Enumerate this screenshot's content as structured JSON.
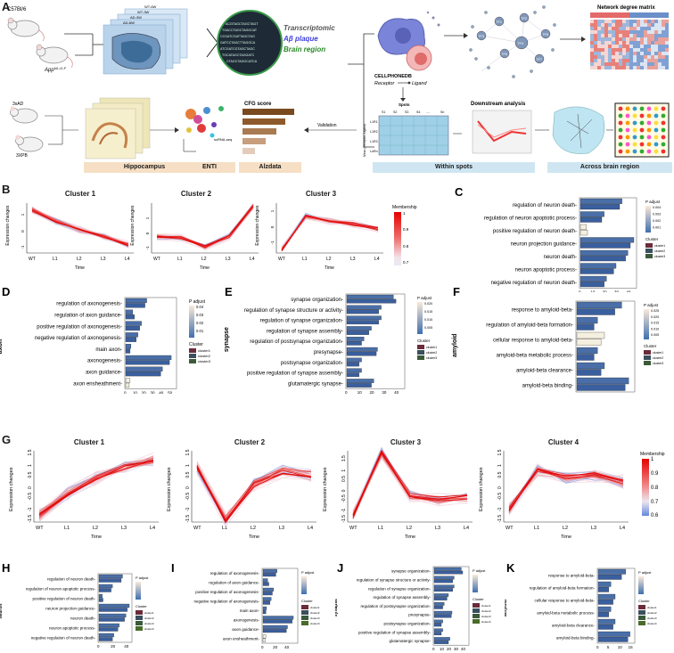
{
  "panelA": {
    "letter": "A",
    "mouse1": "C57Bl/6",
    "mouse2": "App",
    "mouse2_sup": "NL-G-F",
    "sections": [
      "WT-6W",
      "WT-3W",
      "AD-3W",
      "AD-6W"
    ],
    "circle_labels": [
      "Transcriptomic",
      "Aβ plaque",
      "Brain region"
    ],
    "circle_colors": [
      "#555555",
      "#3d3de0",
      "#2a8a2a"
    ],
    "cellphonedb": "CELLPHONEDB",
    "receptor": "Receptor",
    "ligand": "Ligand",
    "spots_label": "Spots",
    "spot_headers": [
      "S1",
      "S2",
      "S3",
      "S4",
      "....",
      "Sn"
    ],
    "lr_rows": [
      "L1R1",
      "L1R2",
      "L1R3",
      "LnRn"
    ],
    "mean_axis": "Mean (Receptor, Ligand)",
    "tf_nodes": [
      "TF1",
      "TF2",
      "TF3",
      "TF4",
      "TF5",
      "TF6",
      "TF7"
    ],
    "network_title": "Network degree matrix",
    "downstream": "Downstream analysis",
    "mice_bottom": [
      "3xAD",
      "3XPB"
    ],
    "scrna": "scRNA-seq",
    "cfg": "CFG score",
    "validation": "Validation",
    "bottom_chips": [
      "Hippocampus",
      "ENTI",
      "Alzdata",
      "Within spots",
      "Across brain region"
    ]
  },
  "panelB": {
    "letter": "B",
    "titles": [
      "Cluster 1",
      "Cluster 2",
      "Cluster 3"
    ],
    "ylabel": "Expression changes",
    "xlabel": "Time",
    "xticks": [
      "WT",
      "L1",
      "L2",
      "L3",
      "L4"
    ],
    "yticks": [
      "2",
      "1",
      "0",
      "-1"
    ],
    "legend_title": "Membership",
    "legend_ticks": [
      "1",
      "0.9",
      "0.8",
      "0.7"
    ]
  },
  "panelG": {
    "letter": "G",
    "titles": [
      "Cluster 1",
      "Cluster 2",
      "Cluster 3",
      "Cluster 4"
    ],
    "ylabel": "Expression changes",
    "xlabel": "Time",
    "xticks": [
      "WT",
      "L1",
      "L2",
      "L3",
      "L4"
    ],
    "yticks": [
      "1.5",
      "1",
      "0.5",
      "0",
      "-0.5",
      "-1",
      "-1.5"
    ],
    "legend_title": "Membership",
    "legend_ticks": [
      "1",
      "0.9",
      "0.8",
      "0.7",
      "0.6"
    ]
  },
  "enrich": {
    "C": {
      "letter": "C",
      "group": "neuron",
      "padj_ticks": [
        "0.004",
        "0.003",
        "0.002",
        "0.001"
      ],
      "xticks": [
        "0",
        "10",
        "20",
        "30",
        "40"
      ],
      "terms": [
        "regulation of neuron death",
        "regulation of neuron apoptotic process",
        "positive regulation of neuron death",
        "neuron projection guidance",
        "neuron death",
        "neuron apoptotic process",
        "negative regulation of neuron death"
      ]
    },
    "D": {
      "letter": "D",
      "group": "axon",
      "padj_ticks": [
        "0.04",
        "0.03",
        "0.02",
        "0.01"
      ],
      "xticks": [
        "0",
        "10",
        "20",
        "30",
        "40",
        "50"
      ],
      "terms": [
        "regulation of axonogenesis",
        "regulation of axon guidance",
        "positive regulation of axonogenesis",
        "negative regulation of axonogenesis",
        "main axon",
        "axonogenesis",
        "axon guidance",
        "axon ensheathment"
      ]
    },
    "E": {
      "letter": "E",
      "group": "synapse",
      "padj_ticks": [
        "0.020",
        "0.015",
        "0.010",
        "0.005"
      ],
      "xticks": [
        "0",
        "10",
        "20",
        "30",
        "40"
      ],
      "terms": [
        "synapse organization",
        "regulation of synapse structure or activity",
        "regulation of synapse organization",
        "regulation of synapse assembly",
        "regulation of postsynapse organization",
        "presynapse",
        "postsynapse organization",
        "positive regulation of synapse assembly",
        "glutamatergic synapse"
      ]
    },
    "F": {
      "letter": "F",
      "group": "amyloid",
      "padj_ticks": [
        "0.025",
        "0.020",
        "0.015",
        "0.010",
        "0.005"
      ],
      "xticks": [
        "0",
        "5",
        "10",
        "15"
      ],
      "terms": [
        "response to amyloid-beta",
        "regulation of amyloid-beta formation",
        "cellular response to amyloid-beta",
        "amyloid-beta metabolic process",
        "amyloid-beta clearance",
        "amyloid-beta binding"
      ]
    },
    "H": {
      "letter": "H",
      "group": "neuron",
      "terms": [
        "regulation of neuron death",
        "regulation of neuron apoptotic process",
        "positive regulation of neuron death",
        "neuron projection guidance",
        "neuron death",
        "neuron apoptotic process",
        "negative regulation of neuron death"
      ]
    },
    "I": {
      "letter": "I",
      "group": "axon",
      "terms": [
        "regulation of axonogenesis",
        "regulation of axon guidance",
        "positive regulation of axonogenesis",
        "negative regulation of axonogenesis",
        "main axon",
        "axonogenesis",
        "axon guidance",
        "axon ensheathment"
      ]
    },
    "J": {
      "letter": "J",
      "group": "synapse",
      "terms": [
        "synapse organization",
        "regulation of synapse structure or activity",
        "regulation of synapse organization",
        "regulation of synapse assembly",
        "regulation of postsynapse organization",
        "presynapse",
        "postsynapse organization",
        "positive regulation of synapse assembly",
        "glutamatergic synapse"
      ]
    },
    "K": {
      "letter": "K",
      "group": "amyloid",
      "terms": [
        "response to amyloid-beta",
        "regulation of amyloid-beta formation",
        "cellular response to amyloid-beta",
        "amyloid-beta metabolic process",
        "amyloid-beta clearance",
        "amyloid-beta binding"
      ]
    },
    "padj_label": "P adjust",
    "cluster_label": "Cluster",
    "cluster_names3": [
      "cluster1",
      "cluster2",
      "cluster3"
    ],
    "cluster_names4": [
      "cluster1",
      "cluster2",
      "cluster3",
      "cluster4"
    ],
    "cluster_colors": [
      "#6b2b3a",
      "#3b4f5c",
      "#3a5a3a",
      "#4a6b2a"
    ]
  },
  "chart_data": [
    {
      "type": "line",
      "title": "Cluster 1",
      "xlabel": "Time",
      "ylabel": "Expression changes",
      "categories": [
        "WT",
        "L1",
        "L2",
        "L3",
        "L4"
      ],
      "series": [
        {
          "values": [
            1.2,
            0.5,
            0.0,
            -0.4,
            -0.9
          ]
        }
      ],
      "ylim": [
        -1.4,
        1.6
      ]
    },
    {
      "type": "line",
      "title": "Cluster 2",
      "xlabel": "Time",
      "ylabel": "Expression changes",
      "categories": [
        "WT",
        "L1",
        "L2",
        "L3",
        "L4"
      ],
      "series": [
        {
          "values": [
            -0.3,
            -0.4,
            -1.0,
            -0.3,
            1.7
          ]
        }
      ],
      "ylim": [
        -1.4,
        1.9
      ]
    },
    {
      "type": "line",
      "title": "Cluster 3",
      "xlabel": "Time",
      "ylabel": "Expression changes",
      "categories": [
        "WT",
        "L1",
        "L2",
        "L3",
        "L4"
      ],
      "series": [
        {
          "values": [
            -1.5,
            0.6,
            0.3,
            0.1,
            -0.2
          ]
        }
      ],
      "ylim": [
        -1.7,
        1.4
      ]
    },
    {
      "type": "line",
      "title": "Cluster 1",
      "xlabel": "Time",
      "ylabel": "Expression changes",
      "categories": [
        "WT",
        "L1",
        "L2",
        "L3",
        "L4"
      ],
      "series": [
        {
          "values": [
            -1.3,
            -0.3,
            0.4,
            0.9,
            1.2
          ]
        }
      ],
      "ylim": [
        -1.6,
        1.6
      ]
    },
    {
      "type": "line",
      "title": "Cluster 2",
      "xlabel": "Time",
      "ylabel": "Expression changes",
      "categories": [
        "WT",
        "L1",
        "L2",
        "L3",
        "L4"
      ],
      "series": [
        {
          "values": [
            0.9,
            -1.5,
            0.1,
            0.7,
            0.5
          ]
        }
      ],
      "ylim": [
        -1.6,
        1.6
      ]
    },
    {
      "type": "line",
      "title": "Cluster 3",
      "xlabel": "Time",
      "ylabel": "Expression changes",
      "categories": [
        "WT",
        "L1",
        "L2",
        "L3",
        "L4"
      ],
      "series": [
        {
          "values": [
            -1.3,
            1.8,
            -0.3,
            -0.5,
            -0.4
          ]
        }
      ],
      "ylim": [
        -1.6,
        1.9
      ]
    },
    {
      "type": "line",
      "title": "Cluster 4",
      "xlabel": "Time",
      "ylabel": "Expression changes",
      "categories": [
        "WT",
        "L1",
        "L2",
        "L3",
        "L4"
      ],
      "series": [
        {
          "values": [
            -1.0,
            0.7,
            0.4,
            0.5,
            0.2
          ]
        }
      ],
      "ylim": [
        -1.6,
        1.6
      ]
    },
    {
      "type": "bar",
      "title": "neuron",
      "categories": [
        "regulation of neuron death",
        "regulation of neuron apoptotic process",
        "positive regulation of neuron death",
        "neuron projection guidance",
        "neuron death",
        "neuron apoptotic process",
        "negative regulation of neuron death"
      ],
      "series": [
        {
          "name": "cluster1",
          "values": [
            35,
            20,
            5,
            45,
            40,
            30,
            22
          ]
        },
        {
          "name": "cluster2",
          "values": [
            33,
            18,
            6,
            42,
            38,
            28,
            20
          ]
        }
      ],
      "xlim": [
        0,
        45
      ]
    },
    {
      "type": "bar",
      "title": "axon",
      "categories": [
        "regulation of axonogenesis",
        "regulation of axon guidance",
        "positive regulation of axonogenesis",
        "negative regulation of axonogenesis",
        "main axon",
        "axonogenesis",
        "axon guidance",
        "axon ensheathment"
      ],
      "series": [
        {
          "name": "cluster1",
          "values": [
            24,
            8,
            18,
            14,
            6,
            52,
            42,
            5
          ]
        },
        {
          "name": "cluster2",
          "values": [
            22,
            10,
            16,
            12,
            5,
            50,
            40,
            4
          ]
        }
      ],
      "xlim": [
        0,
        55
      ]
    },
    {
      "type": "bar",
      "title": "synapse",
      "categories": [
        "synapse organization",
        "regulation of synapse structure or activity",
        "regulation of synapse organization",
        "regulation of synapse assembly",
        "regulation of postsynapse organization",
        "presynapse",
        "postsynapse organization",
        "positive regulation of synapse assembly",
        "glutamatergic synapse"
      ],
      "series": [
        {
          "name": "cluster1",
          "values": [
            38,
            28,
            28,
            20,
            14,
            25,
            12,
            12,
            22
          ]
        },
        {
          "name": "cluster2",
          "values": [
            40,
            26,
            26,
            18,
            12,
            24,
            10,
            10,
            20
          ]
        }
      ],
      "xlim": [
        0,
        45
      ]
    },
    {
      "type": "bar",
      "title": "amyloid",
      "categories": [
        "response to amyloid-beta",
        "regulation of amyloid-beta formation",
        "cellular response to amyloid-beta",
        "amyloid-beta metabolic process",
        "amyloid-beta clearance",
        "amyloid-beta binding"
      ],
      "series": [
        {
          "name": "cluster1",
          "values": [
            13,
            6,
            8,
            6,
            8,
            15
          ]
        },
        {
          "name": "cluster2",
          "values": [
            11,
            5,
            7,
            5,
            7,
            14
          ]
        }
      ],
      "xlim": [
        0,
        16
      ]
    }
  ]
}
